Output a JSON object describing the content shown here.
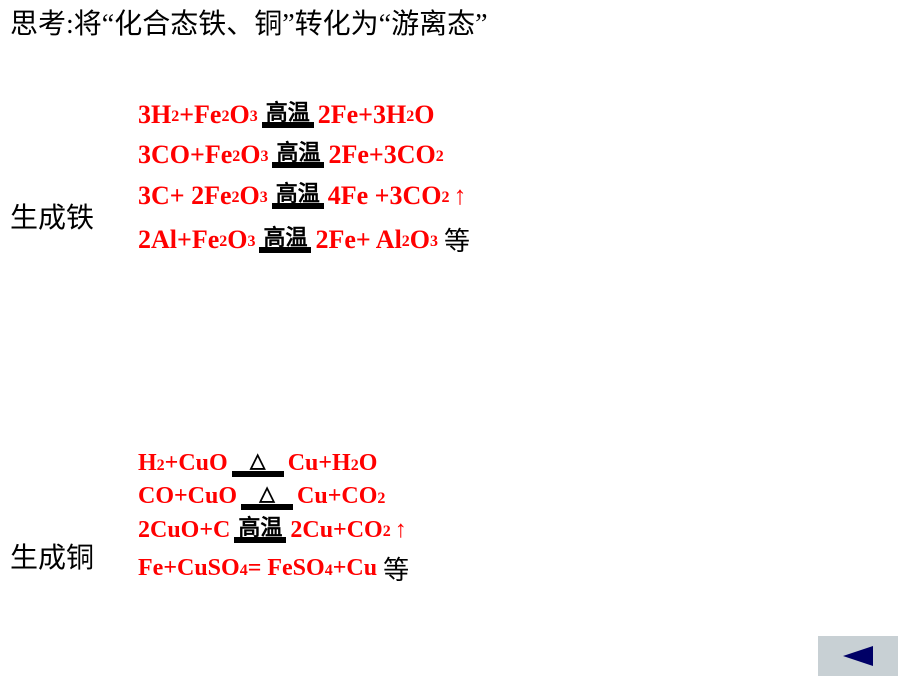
{
  "heading": "思考:将“化合态铁、铜”转化为“游离态”",
  "iron": {
    "label": "生成铁",
    "font_size": 26,
    "row_gap": 10,
    "equations": [
      {
        "left": [
          [
            "3H",
            2
          ],
          [
            "+Fe",
            2
          ],
          [
            "O",
            3
          ]
        ],
        "cond": "高温",
        "right": [
          [
            "2Fe+3H",
            2
          ],
          [
            "O",
            null
          ]
        ],
        "gas": false,
        "etc": null
      },
      {
        "left": [
          [
            "3CO+Fe",
            2
          ],
          [
            "O",
            3
          ]
        ],
        "cond": "高温",
        "right": [
          [
            "2Fe+3CO",
            2
          ]
        ],
        "gas": false,
        "etc": null
      },
      {
        "left": [
          [
            "3C+ 2Fe",
            2
          ],
          [
            "O",
            3
          ]
        ],
        "cond": "高温",
        "right": [
          [
            "4Fe +3CO",
            2
          ]
        ],
        "gas": true,
        "etc": null
      },
      {
        "left": [
          [
            "2Al+Fe",
            2
          ],
          [
            "O",
            3
          ]
        ],
        "cond": "高温",
        "right": [
          [
            "2Fe+ Al",
            2
          ],
          [
            "O",
            3
          ]
        ],
        "gas": false,
        "etc": "等"
      }
    ]
  },
  "copper": {
    "label": "生成铜",
    "font_size": 24,
    "row_gap": 6,
    "equations": [
      {
        "left": [
          [
            "H",
            2
          ],
          [
            "+CuO",
            null
          ]
        ],
        "cond": "delta",
        "right": [
          [
            "Cu+H",
            2
          ],
          [
            "O",
            null
          ]
        ],
        "gas": false,
        "etc": null
      },
      {
        "left": [
          [
            "CO+CuO",
            null
          ]
        ],
        "cond": "delta",
        "right": [
          [
            "Cu+CO",
            2
          ]
        ],
        "gas": false,
        "etc": null
      },
      {
        "left": [
          [
            "2CuO+C",
            null
          ]
        ],
        "cond": "高温",
        "right": [
          [
            "2Cu+CO",
            2
          ]
        ],
        "gas": true,
        "etc": null
      },
      {
        "left": [
          [
            "Fe+CuSO",
            4
          ],
          [
            "= FeSO",
            4
          ],
          [
            "+Cu",
            null
          ]
        ],
        "cond": null,
        "right": [],
        "gas": false,
        "etc": "等"
      }
    ]
  },
  "colors": {
    "equation": "#ff0000",
    "condition": "#000000",
    "heading": "#000000",
    "nav_bg": "#c8d0d4",
    "nav_arrow": "#000066"
  }
}
